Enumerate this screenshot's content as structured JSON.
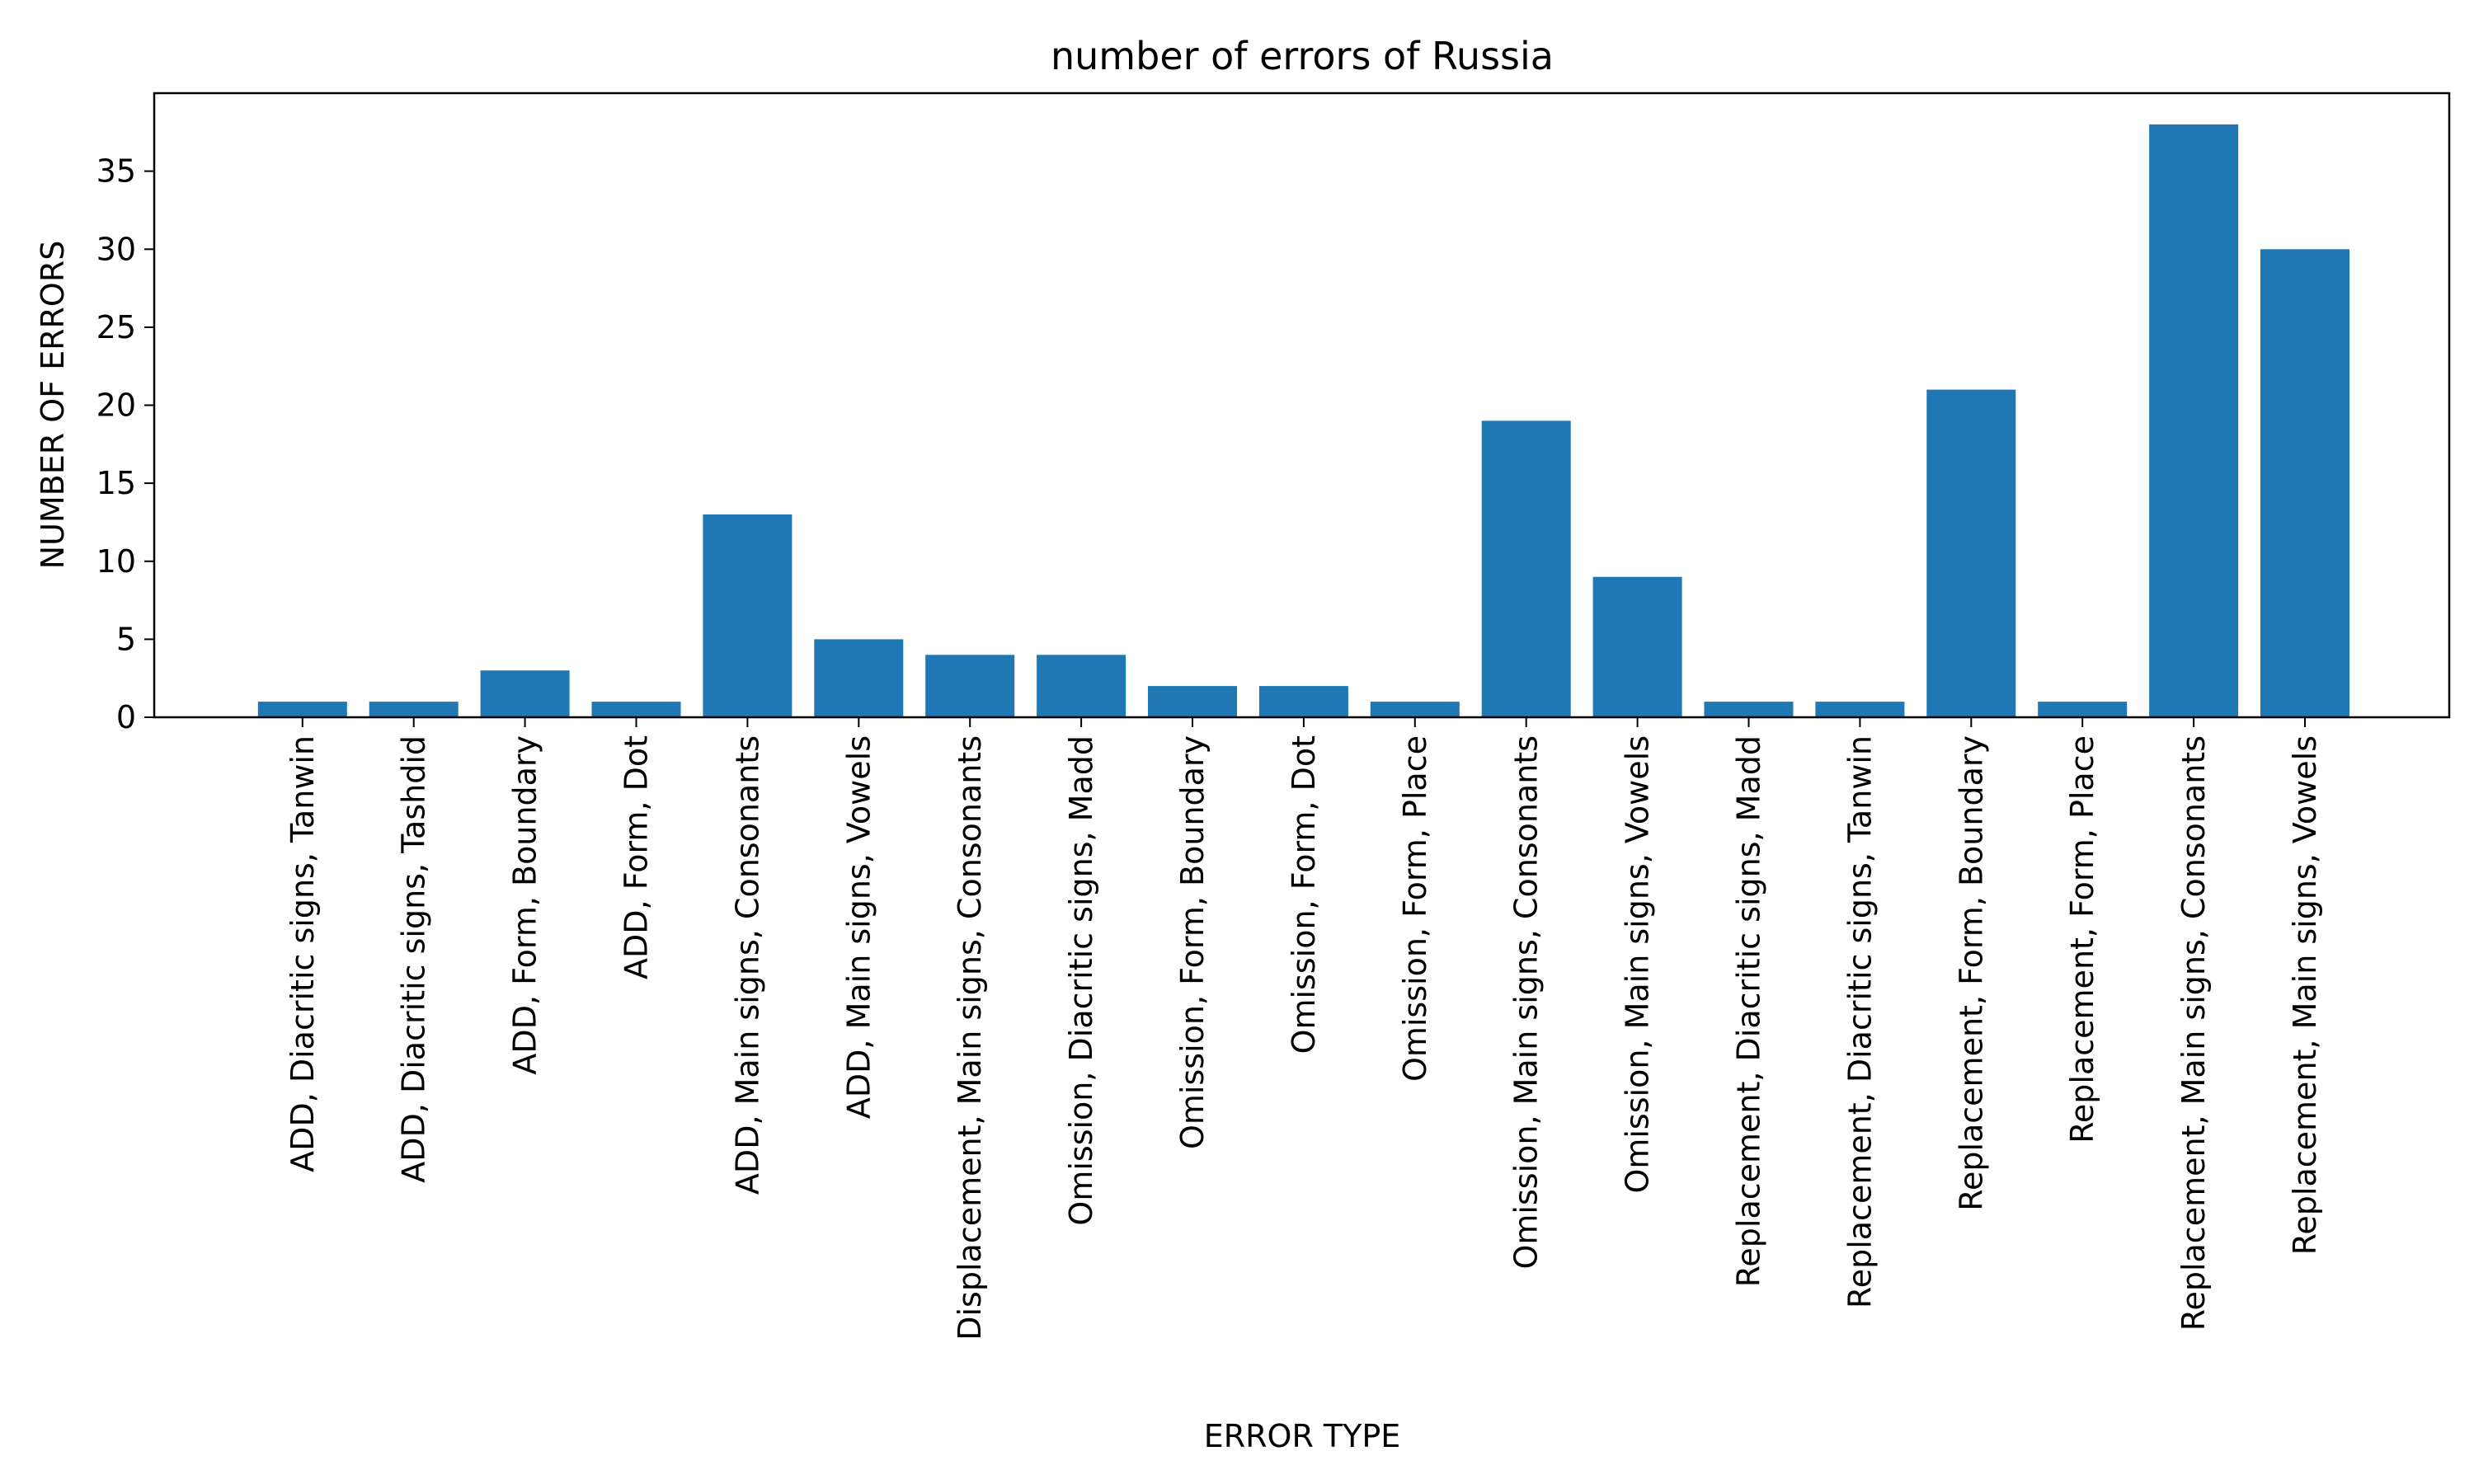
{
  "chart_data": {
    "type": "bar",
    "title": "number of errors of Russia",
    "xlabel": "ERROR TYPE",
    "ylabel": "NUMBER OF ERRORS",
    "categories": [
      "ADD, Diacritic signs, Tanwin",
      "ADD, Diacritic signs, Tashdid",
      "ADD, Form, Boundary",
      "ADD, Form, Dot",
      "ADD, Main signs, Consonants",
      "ADD, Main signs, Vowels",
      "Displacement, Main signs, Consonants",
      "Omission, Diacritic signs, Madd",
      "Omission, Form, Boundary",
      "Omission, Form, Dot",
      "Omission, Form, Place",
      "Omission, Main signs, Consonants",
      "Omission, Main signs, Vowels",
      "Replacement, Diacritic signs, Madd",
      "Replacement, Diacritic signs, Tanwin",
      "Replacement, Form, Boundary",
      "Replacement, Form, Place",
      "Replacement, Main signs, Consonants",
      "Replacement, Main signs, Vowels"
    ],
    "values": [
      1,
      1,
      3,
      1,
      13,
      5,
      4,
      4,
      2,
      2,
      1,
      19,
      9,
      1,
      1,
      21,
      1,
      38,
      30
    ],
    "ylim": [
      0,
      40
    ],
    "yticks": [
      "0",
      "5",
      "10",
      "15",
      "20",
      "25",
      "30",
      "35"
    ],
    "bar_color": "#1f77b4",
    "grid": false,
    "legend": "none"
  }
}
